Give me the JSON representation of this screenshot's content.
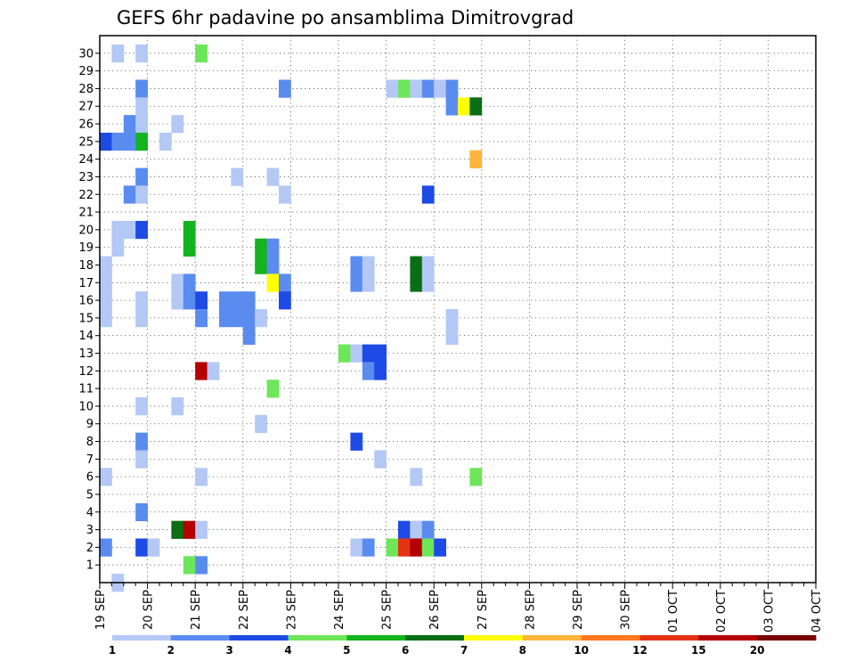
{
  "chart_data": {
    "type": "heatmap",
    "title": "GEFS 6hr padavine po ansamblima Dimitrovgrad",
    "y_categories": [
      "1",
      "2",
      "3",
      "4",
      "5",
      "6",
      "7",
      "8",
      "9",
      "10",
      "11",
      "12",
      "13",
      "14",
      "15",
      "16",
      "17",
      "18",
      "19",
      "20",
      "21",
      "22",
      "23",
      "24",
      "25",
      "26",
      "27",
      "28",
      "29",
      "30"
    ],
    "x_tick_labels": [
      "19 SEP",
      "20 SEP",
      "21 SEP",
      "22 SEP",
      "23 SEP",
      "24 SEP",
      "25 SEP",
      "26 SEP",
      "27 SEP",
      "28 SEP",
      "29 SEP",
      "30 SEP",
      "01 OCT",
      "02 OCT",
      "03 OCT",
      "04 OCT"
    ],
    "x_range_days": [
      0,
      15
    ],
    "step_hours": 6,
    "grid": true,
    "legend": {
      "placement": "bottom",
      "labels": [
        "1",
        "2",
        "3",
        "4",
        "5",
        "6",
        "7",
        "8",
        "10",
        "12",
        "15",
        "20"
      ],
      "colors": [
        "#b4c8f5",
        "#5a8cf0",
        "#1e4be6",
        "#6ee65a",
        "#14b41e",
        "#0a6e14",
        "#ffff00",
        "#ffb43c",
        "#ff781e",
        "#e63214",
        "#b40000",
        "#780000"
      ]
    },
    "cells": [
      {
        "member": 30,
        "step": 1,
        "level": 1
      },
      {
        "member": 30,
        "step": 3,
        "level": 1
      },
      {
        "member": 30,
        "step": 8,
        "level": 4
      },
      {
        "member": 28,
        "step": 3,
        "level": 2
      },
      {
        "member": 28,
        "step": 15,
        "level": 2
      },
      {
        "member": 28,
        "step": 24,
        "level": 1
      },
      {
        "member": 28,
        "step": 25,
        "level": 4
      },
      {
        "member": 28,
        "step": 26,
        "level": 1
      },
      {
        "member": 28,
        "step": 27,
        "level": 2
      },
      {
        "member": 28,
        "step": 28,
        "level": 1
      },
      {
        "member": 28,
        "step": 29,
        "level": 2
      },
      {
        "member": 27,
        "step": 3,
        "level": 1
      },
      {
        "member": 27,
        "step": 29,
        "level": 2
      },
      {
        "member": 27,
        "step": 30,
        "level": 7
      },
      {
        "member": 27,
        "step": 31,
        "level": 6
      },
      {
        "member": 26,
        "step": 2,
        "level": 2
      },
      {
        "member": 26,
        "step": 3,
        "level": 1
      },
      {
        "member": 26,
        "step": 6,
        "level": 1
      },
      {
        "member": 25,
        "step": 0,
        "level": 3
      },
      {
        "member": 25,
        "step": 1,
        "level": 2
      },
      {
        "member": 25,
        "step": 2,
        "level": 2
      },
      {
        "member": 25,
        "step": 3,
        "level": 5
      },
      {
        "member": 25,
        "step": 5,
        "level": 1
      },
      {
        "member": 24,
        "step": 31,
        "level": 8
      },
      {
        "member": 23,
        "step": 3,
        "level": 2
      },
      {
        "member": 23,
        "step": 11,
        "level": 1
      },
      {
        "member": 23,
        "step": 14,
        "level": 1
      },
      {
        "member": 22,
        "step": 2,
        "level": 2
      },
      {
        "member": 22,
        "step": 3,
        "level": 1
      },
      {
        "member": 22,
        "step": 15,
        "level": 1
      },
      {
        "member": 22,
        "step": 27,
        "level": 3
      },
      {
        "member": 20,
        "step": 1,
        "level": 1
      },
      {
        "member": 20,
        "step": 2,
        "level": 1
      },
      {
        "member": 20,
        "step": 3,
        "level": 3
      },
      {
        "member": 20,
        "step": 7,
        "level": 5
      },
      {
        "member": 19,
        "step": 1,
        "level": 1
      },
      {
        "member": 19,
        "step": 7,
        "level": 5
      },
      {
        "member": 19,
        "step": 13,
        "level": 5
      },
      {
        "member": 19,
        "step": 14,
        "level": 2
      },
      {
        "member": 18,
        "step": 0,
        "level": 1
      },
      {
        "member": 18,
        "step": 13,
        "level": 5
      },
      {
        "member": 18,
        "step": 14,
        "level": 2
      },
      {
        "member": 18,
        "step": 21,
        "level": 2
      },
      {
        "member": 18,
        "step": 22,
        "level": 1
      },
      {
        "member": 18,
        "step": 26,
        "level": 6
      },
      {
        "member": 18,
        "step": 27,
        "level": 1
      },
      {
        "member": 17,
        "step": 0,
        "level": 1
      },
      {
        "member": 17,
        "step": 6,
        "level": 1
      },
      {
        "member": 17,
        "step": 7,
        "level": 2
      },
      {
        "member": 17,
        "step": 14,
        "level": 7
      },
      {
        "member": 17,
        "step": 15,
        "level": 2
      },
      {
        "member": 17,
        "step": 21,
        "level": 2
      },
      {
        "member": 17,
        "step": 22,
        "level": 1
      },
      {
        "member": 17,
        "step": 26,
        "level": 6
      },
      {
        "member": 17,
        "step": 27,
        "level": 1
      },
      {
        "member": 16,
        "step": 0,
        "level": 1
      },
      {
        "member": 16,
        "step": 3,
        "level": 1
      },
      {
        "member": 16,
        "step": 6,
        "level": 1
      },
      {
        "member": 16,
        "step": 7,
        "level": 2
      },
      {
        "member": 16,
        "step": 8,
        "level": 3
      },
      {
        "member": 16,
        "step": 10,
        "level": 2
      },
      {
        "member": 16,
        "step": 11,
        "level": 2
      },
      {
        "member": 16,
        "step": 12,
        "level": 2
      },
      {
        "member": 16,
        "step": 15,
        "level": 3
      },
      {
        "member": 15,
        "step": 0,
        "level": 1
      },
      {
        "member": 15,
        "step": 3,
        "level": 1
      },
      {
        "member": 15,
        "step": 8,
        "level": 2
      },
      {
        "member": 15,
        "step": 10,
        "level": 2
      },
      {
        "member": 15,
        "step": 11,
        "level": 2
      },
      {
        "member": 15,
        "step": 12,
        "level": 2
      },
      {
        "member": 15,
        "step": 13,
        "level": 1
      },
      {
        "member": 15,
        "step": 29,
        "level": 1
      },
      {
        "member": 14,
        "step": 12,
        "level": 2
      },
      {
        "member": 14,
        "step": 29,
        "level": 1
      },
      {
        "member": 13,
        "step": 20,
        "level": 4
      },
      {
        "member": 13,
        "step": 21,
        "level": 1
      },
      {
        "member": 13,
        "step": 22,
        "level": 3
      },
      {
        "member": 13,
        "step": 23,
        "level": 3
      },
      {
        "member": 12,
        "step": 8,
        "level": 11
      },
      {
        "member": 12,
        "step": 9,
        "level": 1
      },
      {
        "member": 12,
        "step": 22,
        "level": 2
      },
      {
        "member": 12,
        "step": 23,
        "level": 3
      },
      {
        "member": 11,
        "step": 14,
        "level": 4
      },
      {
        "member": 10,
        "step": 3,
        "level": 1
      },
      {
        "member": 10,
        "step": 6,
        "level": 1
      },
      {
        "member": 9,
        "step": 13,
        "level": 1
      },
      {
        "member": 8,
        "step": 3,
        "level": 2
      },
      {
        "member": 8,
        "step": 21,
        "level": 3
      },
      {
        "member": 7,
        "step": 3,
        "level": 1
      },
      {
        "member": 7,
        "step": 23,
        "level": 1
      },
      {
        "member": 6,
        "step": 0,
        "level": 1
      },
      {
        "member": 6,
        "step": 8,
        "level": 1
      },
      {
        "member": 6,
        "step": 26,
        "level": 1
      },
      {
        "member": 6,
        "step": 31,
        "level": 4
      },
      {
        "member": 4,
        "step": 3,
        "level": 2
      },
      {
        "member": 3,
        "step": 6,
        "level": 6
      },
      {
        "member": 3,
        "step": 7,
        "level": 11
      },
      {
        "member": 3,
        "step": 8,
        "level": 1
      },
      {
        "member": 3,
        "step": 25,
        "level": 3
      },
      {
        "member": 3,
        "step": 26,
        "level": 1
      },
      {
        "member": 3,
        "step": 26,
        "level": 1
      },
      {
        "member": 3,
        "step": 27,
        "level": 2
      },
      {
        "member": 2,
        "step": 0,
        "level": 2
      },
      {
        "member": 2,
        "step": 3,
        "level": 3
      },
      {
        "member": 2,
        "step": 4,
        "level": 1
      },
      {
        "member": 2,
        "step": 21,
        "level": 1
      },
      {
        "member": 2,
        "step": 22,
        "level": 2
      },
      {
        "member": 2,
        "step": 24,
        "level": 4
      },
      {
        "member": 2,
        "step": 25,
        "level": 10
      },
      {
        "member": 2,
        "step": 26,
        "level": 11
      },
      {
        "member": 2,
        "step": 27,
        "level": 4
      },
      {
        "member": 2,
        "step": 28,
        "level": 3
      },
      {
        "member": 1,
        "step": 7,
        "level": 4
      },
      {
        "member": 1,
        "step": 8,
        "level": 2
      },
      {
        "member": 0,
        "step": 1,
        "level": 1
      }
    ]
  }
}
